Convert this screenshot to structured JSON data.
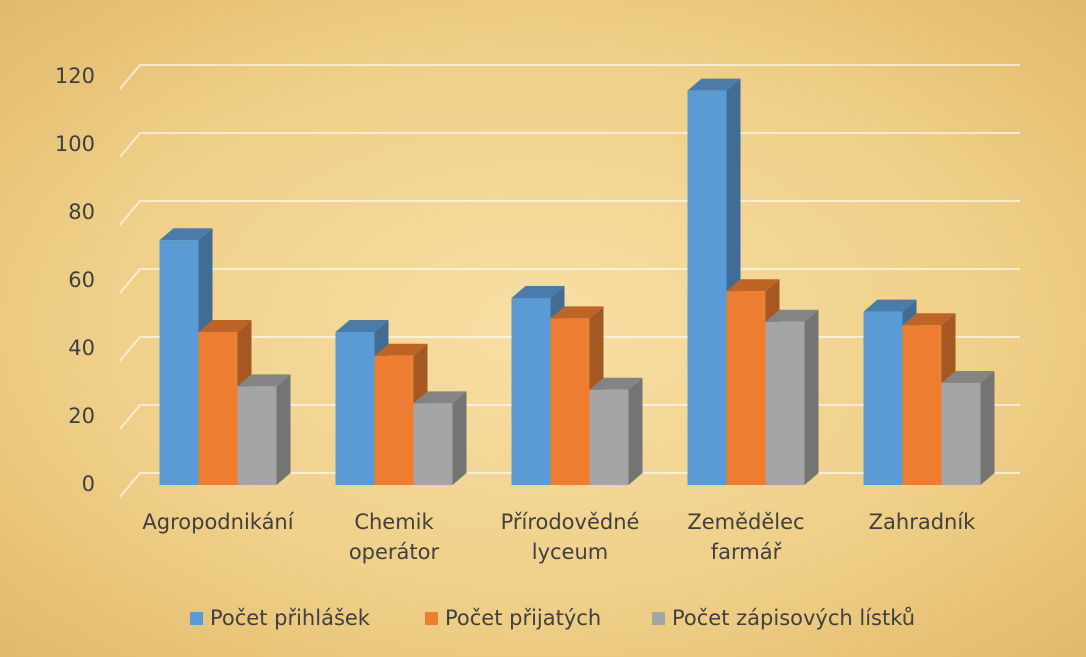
{
  "chart_data": {
    "type": "bar3d",
    "categories": [
      "Agropodnikání",
      "Chemik operátor",
      "Přírodovědné lyceum",
      "Zemědělec farmář",
      "Zahradník"
    ],
    "series": [
      {
        "name": "Počet přihlášek",
        "color": "#5b9bd5",
        "values": [
          72,
          45,
          55,
          116,
          51
        ]
      },
      {
        "name": "Počet přijatých",
        "color": "#ed7d31",
        "values": [
          45,
          38,
          49,
          57,
          47
        ]
      },
      {
        "name": "Počet zápisových lístků",
        "color": "#a5a5a5",
        "values": [
          29,
          24,
          28,
          48,
          30
        ]
      }
    ],
    "ylim": [
      0,
      120
    ],
    "yticks": [
      0,
      20,
      40,
      60,
      80,
      100,
      120
    ],
    "grid": true
  }
}
